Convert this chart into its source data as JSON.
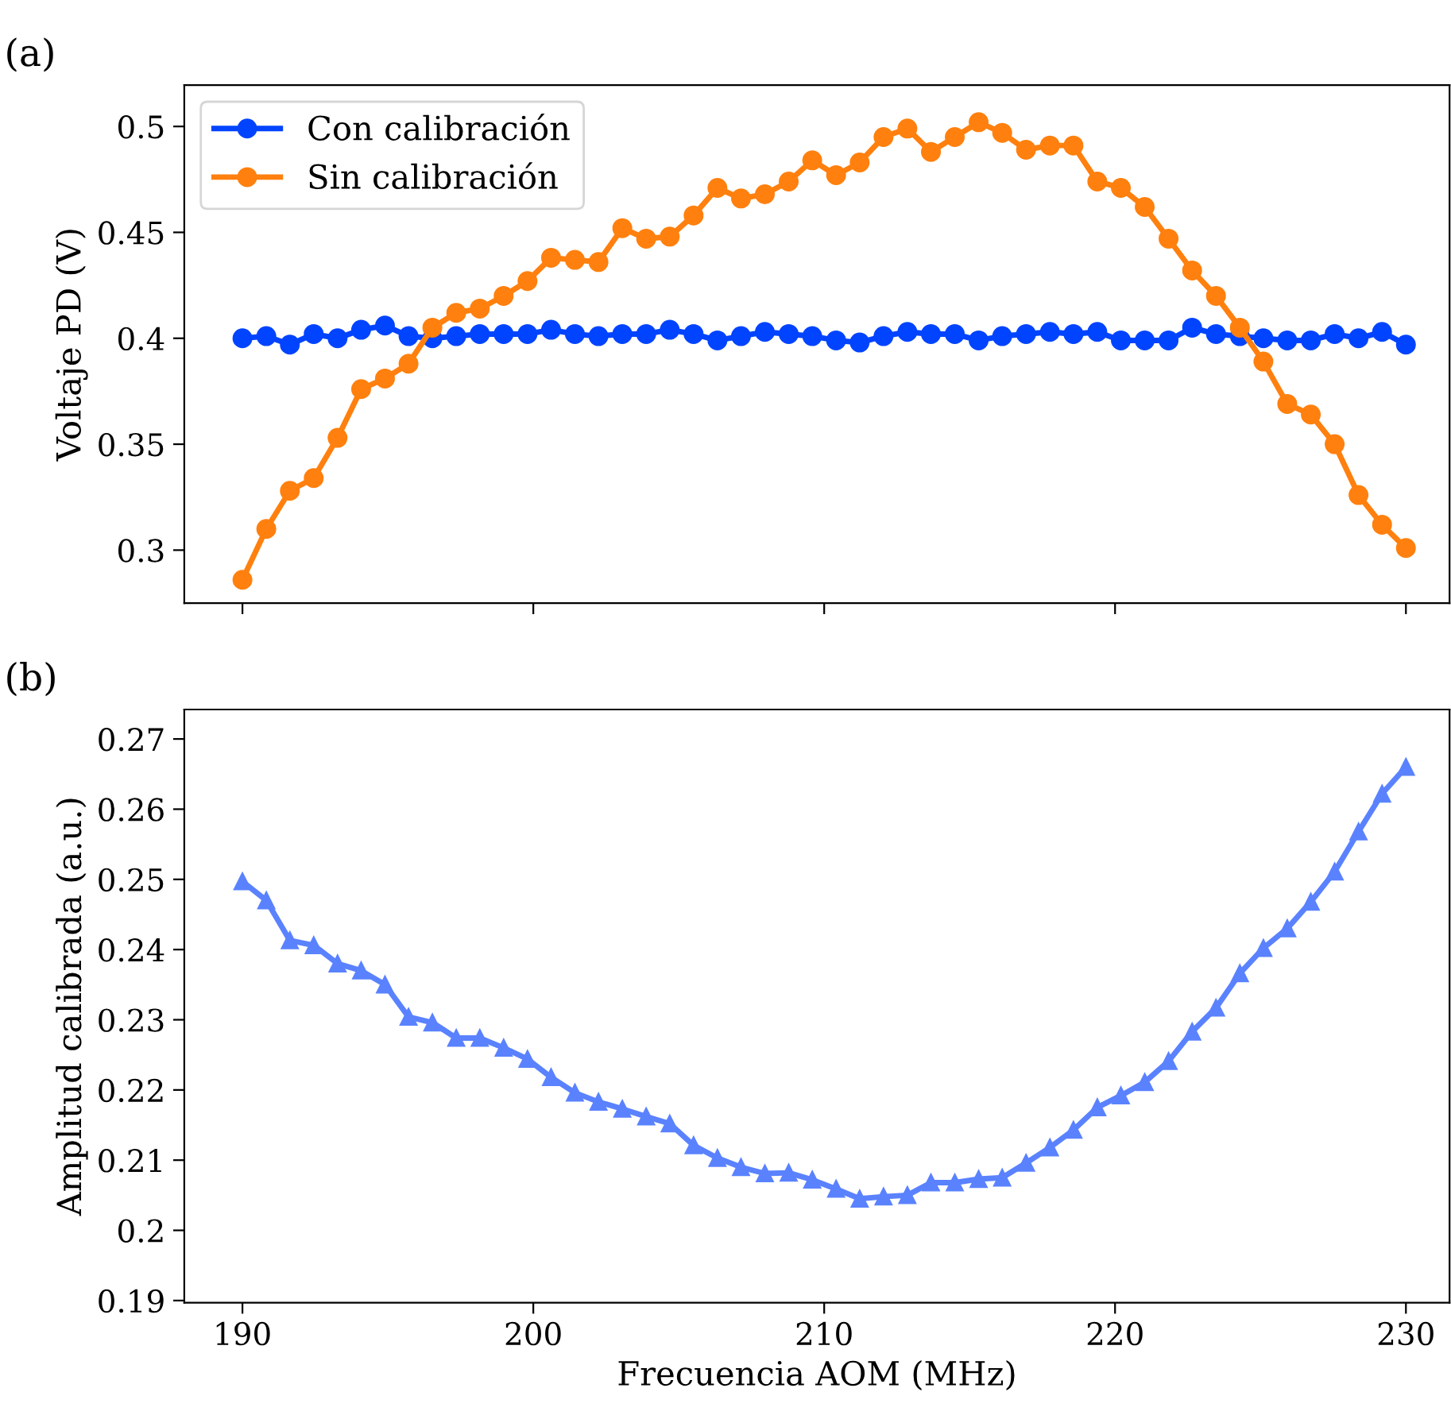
{
  "chart_data": [
    {
      "type": "line",
      "title": "(a)",
      "ylabel": "Voltaje PD (V)",
      "marker": "circle",
      "legend": "top left",
      "grid": false,
      "tick_labels": "y",
      "x": [
        190.0,
        190.82,
        191.63,
        192.45,
        193.27,
        194.08,
        194.9,
        195.71,
        196.53,
        197.35,
        198.16,
        198.98,
        199.8,
        200.61,
        201.43,
        202.24,
        203.06,
        203.88,
        204.69,
        205.51,
        206.33,
        207.14,
        207.96,
        208.78,
        209.59,
        210.41,
        211.22,
        212.04,
        212.86,
        213.67,
        214.49,
        215.31,
        216.12,
        216.94,
        217.76,
        218.57,
        219.39,
        220.2,
        221.02,
        221.84,
        222.65,
        223.47,
        224.29,
        225.1,
        225.92,
        226.73,
        227.55,
        228.37,
        229.18,
        230.0
      ],
      "xlim": [
        188.0,
        231.5
      ],
      "xticks": [
        {
          "value": 190,
          "label": null
        },
        {
          "value": 200,
          "label": null
        },
        {
          "value": 210,
          "label": null
        },
        {
          "value": 220,
          "label": null
        },
        {
          "value": 230,
          "label": null
        }
      ],
      "ylim": [
        0.275,
        0.5195
      ],
      "yticks": [
        0.3,
        0.35,
        0.4,
        0.45,
        0.5
      ],
      "series": [
        {
          "name": "Con calibración",
          "color": "#0044ff",
          "values": [
            0.4,
            0.401,
            0.397,
            0.402,
            0.4,
            0.404,
            0.406,
            0.401,
            0.4,
            0.401,
            0.402,
            0.402,
            0.402,
            0.404,
            0.402,
            0.401,
            0.402,
            0.402,
            0.404,
            0.402,
            0.399,
            0.401,
            0.403,
            0.402,
            0.401,
            0.399,
            0.398,
            0.401,
            0.403,
            0.402,
            0.402,
            0.399,
            0.401,
            0.402,
            0.403,
            0.402,
            0.403,
            0.399,
            0.399,
            0.399,
            0.405,
            0.402,
            0.401,
            0.4,
            0.399,
            0.399,
            0.402,
            0.4,
            0.403,
            0.397
          ]
        },
        {
          "name": "Sin calibración",
          "color": "#ff800e",
          "values": [
            0.286,
            0.31,
            0.328,
            0.334,
            0.353,
            0.376,
            0.381,
            0.388,
            0.405,
            0.412,
            0.414,
            0.42,
            0.427,
            0.438,
            0.437,
            0.436,
            0.452,
            0.447,
            0.448,
            0.458,
            0.471,
            0.466,
            0.468,
            0.474,
            0.484,
            0.477,
            0.483,
            0.495,
            0.499,
            0.488,
            0.495,
            0.502,
            0.497,
            0.489,
            0.491,
            0.491,
            0.474,
            0.471,
            0.462,
            0.447,
            0.432,
            0.42,
            0.405,
            0.389,
            0.369,
            0.364,
            0.35,
            0.326,
            0.312,
            0.301
          ]
        }
      ]
    },
    {
      "type": "line",
      "title": "(b)",
      "xlabel": "Frecuencia AOM (MHz)",
      "ylabel": "Amplitud calibrada (a.u.)",
      "marker": "triangle",
      "legend": false,
      "grid": false,
      "x": [
        190.0,
        190.82,
        191.63,
        192.45,
        193.27,
        194.08,
        194.9,
        195.71,
        196.53,
        197.35,
        198.16,
        198.98,
        199.8,
        200.61,
        201.43,
        202.24,
        203.06,
        203.88,
        204.69,
        205.51,
        206.33,
        207.14,
        207.96,
        208.78,
        209.59,
        210.41,
        211.22,
        212.04,
        212.86,
        213.67,
        214.49,
        215.31,
        216.12,
        216.94,
        217.76,
        218.57,
        219.39,
        220.2,
        221.02,
        221.84,
        222.65,
        223.47,
        224.29,
        225.1,
        225.92,
        226.73,
        227.55,
        228.37,
        229.18,
        230.0
      ],
      "xlim": [
        188.0,
        231.5
      ],
      "xticks": [
        190,
        200,
        210,
        220,
        230
      ],
      "ylim": [
        0.1897,
        0.2742
      ],
      "yticks": [
        0.19,
        0.2,
        0.21,
        0.22,
        0.23,
        0.24,
        0.25,
        0.26,
        0.27
      ],
      "series": [
        {
          "color": "#5a82ff",
          "values": [
            0.2497,
            0.247,
            0.2413,
            0.2406,
            0.238,
            0.237,
            0.235,
            0.2304,
            0.2296,
            0.2274,
            0.2274,
            0.226,
            0.2244,
            0.2218,
            0.2196,
            0.2183,
            0.2173,
            0.2162,
            0.2152,
            0.2121,
            0.2103,
            0.209,
            0.2081,
            0.2082,
            0.2072,
            0.2059,
            0.2045,
            0.2048,
            0.205,
            0.2068,
            0.2068,
            0.2073,
            0.2075,
            0.2096,
            0.2118,
            0.2143,
            0.2175,
            0.2192,
            0.2211,
            0.2241,
            0.2283,
            0.2317,
            0.2366,
            0.2402,
            0.243,
            0.2468,
            0.2511,
            0.2568,
            0.2622,
            0.266
          ]
        }
      ]
    }
  ]
}
